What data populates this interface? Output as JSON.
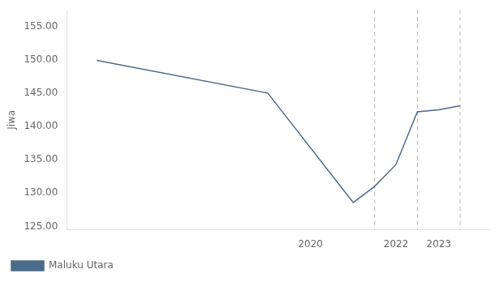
{
  "chart_data": {
    "type": "line",
    "x": [
      2015,
      2019,
      2021,
      2021.5,
      2022,
      2022.5,
      2023,
      2023.5
    ],
    "series": [
      {
        "name": "Maluku Utara",
        "color": "#4a6b8a",
        "values": [
          149.9,
          145.0,
          128.6,
          131.0,
          134.3,
          142.2,
          142.5,
          143.1
        ]
      }
    ],
    "y_label": "Jiwa",
    "xlim": [
      2014.3,
      2024.2
    ],
    "xticks": [
      2020,
      2022,
      2023
    ],
    "ylim": [
      124.5,
      157.5
    ],
    "yticks": [
      {
        "value": 125.0,
        "label": "125.00"
      },
      {
        "value": 130.0,
        "label": "130.00"
      },
      {
        "value": 135.0,
        "label": "135.00"
      },
      {
        "value": 140.0,
        "label": "140.00"
      },
      {
        "value": 145.0,
        "label": "145.00"
      },
      {
        "value": 150.0,
        "label": "150.00"
      },
      {
        "value": 155.0,
        "label": "155.00"
      }
    ],
    "vlines": [
      2021.5,
      2022.5,
      2023.5
    ],
    "grid": false,
    "legend": "bottom left"
  }
}
